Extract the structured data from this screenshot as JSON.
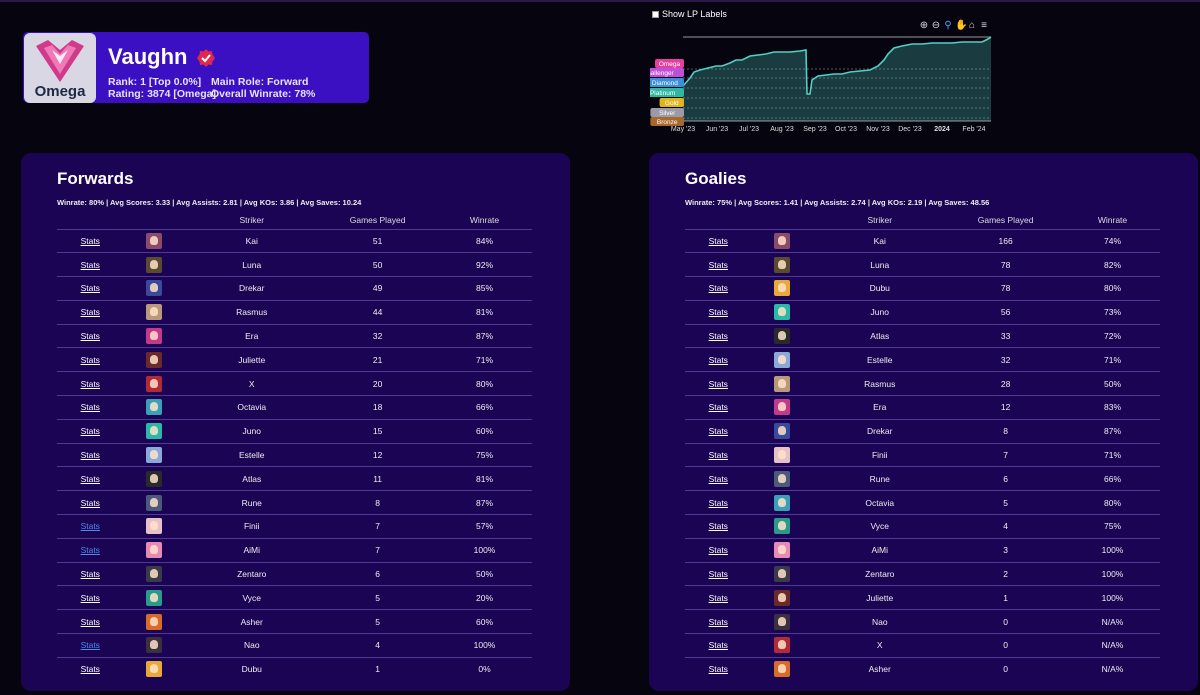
{
  "profile": {
    "name": "Vaughn",
    "rank_tier": "Omega",
    "rank_text": "Rank: 1 [Top 0.0%]",
    "rating_text": "Rating: 3874 [Omega]",
    "role_text": "Main Role: Forward",
    "winrate_text": "Overall Winrate: 78%"
  },
  "chart": {
    "show_lp_labels": "Show LP Labels",
    "tiers": [
      {
        "name": "Omega",
        "color": "#e43fa0"
      },
      {
        "name": "Challenger",
        "color": "#c04fd8"
      },
      {
        "name": "Diamond",
        "color": "#3a8fd8"
      },
      {
        "name": "Platinum",
        "color": "#2fb7a0"
      },
      {
        "name": "Gold",
        "color": "#e0b41e"
      },
      {
        "name": "Silver",
        "color": "#9a9aa8"
      },
      {
        "name": "Bronze",
        "color": "#a8682c"
      }
    ],
    "months": [
      "May '23",
      "Jun '23",
      "Jul '23",
      "Aug '23",
      "Sep '23",
      "Oct '23",
      "Nov '23",
      "Dec '23",
      "2024",
      "Feb '24"
    ],
    "line_color": "#4fd1c5"
  },
  "forwards": {
    "title": "Forwards",
    "summary": "Winrate: 80% | Avg Scores: 3.33 | Avg Assists: 2.81 | Avg KOs: 3.86 | Avg Saves: 10.24",
    "headers": [
      "",
      "",
      "Striker",
      "Games Played",
      "Winrate"
    ],
    "rows": [
      {
        "link": "Stats",
        "striker": "Kai",
        "games": "51",
        "winrate": "84%",
        "visited": false,
        "color": "#8a4b6a"
      },
      {
        "link": "Stats",
        "striker": "Luna",
        "games": "50",
        "winrate": "92%",
        "visited": false,
        "color": "#5a4a30"
      },
      {
        "link": "Stats",
        "striker": "Drekar",
        "games": "49",
        "winrate": "85%",
        "visited": false,
        "color": "#3a4a9a"
      },
      {
        "link": "Stats",
        "striker": "Rasmus",
        "games": "44",
        "winrate": "81%",
        "visited": false,
        "color": "#b89a7a"
      },
      {
        "link": "Stats",
        "striker": "Era",
        "games": "32",
        "winrate": "87%",
        "visited": false,
        "color": "#c23a8a"
      },
      {
        "link": "Stats",
        "striker": "Juliette",
        "games": "21",
        "winrate": "71%",
        "visited": false,
        "color": "#6a2a2a"
      },
      {
        "link": "Stats",
        "striker": "X",
        "games": "20",
        "winrate": "80%",
        "visited": false,
        "color": "#b02a3a"
      },
      {
        "link": "Stats",
        "striker": "Octavia",
        "games": "18",
        "winrate": "66%",
        "visited": false,
        "color": "#3aa0b8"
      },
      {
        "link": "Stats",
        "striker": "Juno",
        "games": "15",
        "winrate": "60%",
        "visited": false,
        "color": "#2ab8a8"
      },
      {
        "link": "Stats",
        "striker": "Estelle",
        "games": "12",
        "winrate": "75%",
        "visited": false,
        "color": "#8aa8d8"
      },
      {
        "link": "Stats",
        "striker": "Atlas",
        "games": "11",
        "winrate": "81%",
        "visited": false,
        "color": "#2a2a2a"
      },
      {
        "link": "Stats",
        "striker": "Rune",
        "games": "8",
        "winrate": "87%",
        "visited": false,
        "color": "#4a5a7a"
      },
      {
        "link": "Stats",
        "striker": "Finii",
        "games": "7",
        "winrate": "57%",
        "visited": true,
        "color": "#e8c0c8"
      },
      {
        "link": "Stats",
        "striker": "AiMi",
        "games": "7",
        "winrate": "100%",
        "visited": true,
        "color": "#e88ab8"
      },
      {
        "link": "Stats",
        "striker": "Zentaro",
        "games": "6",
        "winrate": "50%",
        "visited": false,
        "color": "#3a3a4a"
      },
      {
        "link": "Stats",
        "striker": "Vyce",
        "games": "5",
        "winrate": "20%",
        "visited": false,
        "color": "#2a9a8a"
      },
      {
        "link": "Stats",
        "striker": "Asher",
        "games": "5",
        "winrate": "60%",
        "visited": false,
        "color": "#d86a2a"
      },
      {
        "link": "Stats",
        "striker": "Nao",
        "games": "4",
        "winrate": "100%",
        "visited": true,
        "color": "#3a3040"
      },
      {
        "link": "Stats",
        "striker": "Dubu",
        "games": "1",
        "winrate": "0%",
        "visited": false,
        "color": "#e8a83a"
      }
    ]
  },
  "goalies": {
    "title": "Goalies",
    "summary": "Winrate: 75% | Avg Scores: 1.41 | Avg Assists: 2.74 | Avg KOs: 2.19 | Avg Saves: 48.56",
    "headers": [
      "",
      "",
      "Striker",
      "Games Played",
      "Winrate"
    ],
    "rows": [
      {
        "link": "Stats",
        "striker": "Kai",
        "games": "166",
        "winrate": "74%",
        "visited": false,
        "color": "#8a4b6a"
      },
      {
        "link": "Stats",
        "striker": "Luna",
        "games": "78",
        "winrate": "82%",
        "visited": false,
        "color": "#5a4a30"
      },
      {
        "link": "Stats",
        "striker": "Dubu",
        "games": "78",
        "winrate": "80%",
        "visited": false,
        "color": "#e8a83a"
      },
      {
        "link": "Stats",
        "striker": "Juno",
        "games": "56",
        "winrate": "73%",
        "visited": false,
        "color": "#2ab8a8"
      },
      {
        "link": "Stats",
        "striker": "Atlas",
        "games": "33",
        "winrate": "72%",
        "visited": false,
        "color": "#2a2a2a"
      },
      {
        "link": "Stats",
        "striker": "Estelle",
        "games": "32",
        "winrate": "71%",
        "visited": false,
        "color": "#8aa8d8"
      },
      {
        "link": "Stats",
        "striker": "Rasmus",
        "games": "28",
        "winrate": "50%",
        "visited": false,
        "color": "#b89a7a"
      },
      {
        "link": "Stats",
        "striker": "Era",
        "games": "12",
        "winrate": "83%",
        "visited": false,
        "color": "#c23a8a"
      },
      {
        "link": "Stats",
        "striker": "Drekar",
        "games": "8",
        "winrate": "87%",
        "visited": false,
        "color": "#3a4a9a"
      },
      {
        "link": "Stats",
        "striker": "Finii",
        "games": "7",
        "winrate": "71%",
        "visited": false,
        "color": "#e8c0c8"
      },
      {
        "link": "Stats",
        "striker": "Rune",
        "games": "6",
        "winrate": "66%",
        "visited": false,
        "color": "#4a5a7a"
      },
      {
        "link": "Stats",
        "striker": "Octavia",
        "games": "5",
        "winrate": "80%",
        "visited": false,
        "color": "#3aa0b8"
      },
      {
        "link": "Stats",
        "striker": "Vyce",
        "games": "4",
        "winrate": "75%",
        "visited": false,
        "color": "#2a9a8a"
      },
      {
        "link": "Stats",
        "striker": "AiMi",
        "games": "3",
        "winrate": "100%",
        "visited": false,
        "color": "#e88ab8"
      },
      {
        "link": "Stats",
        "striker": "Zentaro",
        "games": "2",
        "winrate": "100%",
        "visited": false,
        "color": "#3a3a4a"
      },
      {
        "link": "Stats",
        "striker": "Juliette",
        "games": "1",
        "winrate": "100%",
        "visited": false,
        "color": "#6a2a2a"
      },
      {
        "link": "Stats",
        "striker": "Nao",
        "games": "0",
        "winrate": "N/A%",
        "visited": false,
        "color": "#3a3040"
      },
      {
        "link": "Stats",
        "striker": "X",
        "games": "0",
        "winrate": "N/A%",
        "visited": false,
        "color": "#b02a3a"
      },
      {
        "link": "Stats",
        "striker": "Asher",
        "games": "0",
        "winrate": "N/A%",
        "visited": false,
        "color": "#d86a2a"
      }
    ]
  }
}
